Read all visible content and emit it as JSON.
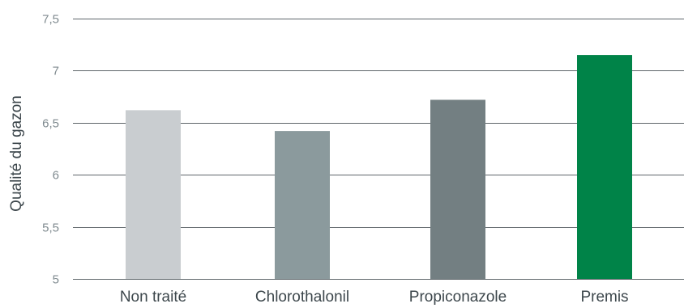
{
  "chart_data": {
    "type": "bar",
    "title": "",
    "xlabel": "",
    "ylabel": "Qualité du gazon",
    "categories": [
      "Non traité",
      "Chlorothalonil",
      "Propiconazole",
      "Premis"
    ],
    "values": [
      6.62,
      6.42,
      6.72,
      7.15
    ],
    "bar_colors": [
      "#c9cdd0",
      "#8b9a9d",
      "#737f82",
      "#008348"
    ],
    "ylim": [
      5,
      7.5
    ],
    "yticks": [
      5,
      5.5,
      6,
      6.5,
      7,
      7.5
    ],
    "ytick_labels": [
      "5",
      "5,5",
      "6",
      "6,5",
      "7",
      "7,5"
    ],
    "grid": true,
    "grid_color": "#5f666a",
    "legend": "none"
  }
}
